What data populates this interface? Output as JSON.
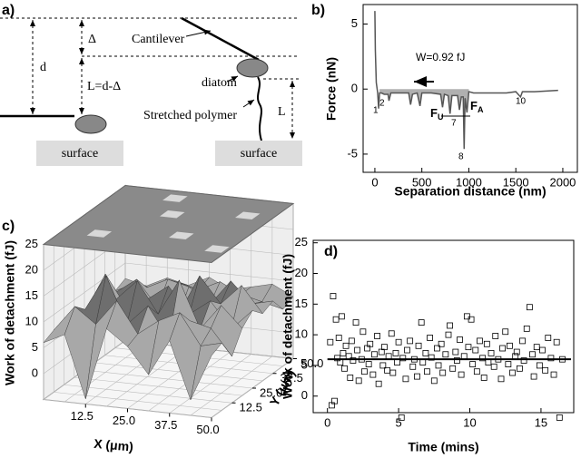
{
  "diagram": {
    "panel_label": "a)",
    "d": "d",
    "delta": "Δ",
    "l_formula": "L=d-Δ",
    "cantilever": "Cantilever",
    "diatom": "diatom",
    "stretched_polymer": "Stretched polymer",
    "l": "L",
    "surface_left": "surface",
    "surface_right": "surface"
  },
  "chart_data": [
    {
      "type": "line",
      "label": "b)",
      "x_label": "Separation distance (nm)",
      "y_label": "Force (nN)",
      "xlim": [
        -125,
        2155
      ],
      "ylim": [
        -6.4,
        6.5
      ],
      "xticks": [
        0,
        500,
        1000,
        1500,
        2000
      ],
      "yticks": [
        -5,
        0,
        5
      ],
      "color": "#555555",
      "fill_color": "#b0b0b0",
      "x": [
        0,
        5,
        15,
        30,
        40,
        50,
        70,
        100,
        140,
        150,
        170,
        200,
        300,
        360,
        380,
        400,
        450,
        480,
        500,
        600,
        700,
        720,
        740,
        780,
        800,
        820,
        880,
        900,
        920,
        940,
        950,
        960,
        980,
        1000,
        1050,
        1200,
        1400,
        1500,
        1550,
        1570,
        1700,
        1950
      ],
      "values": [
        6.0,
        3.0,
        0.5,
        -0.3,
        -1.5,
        -0.3,
        -0.3,
        -0.4,
        -0.4,
        -0.9,
        -0.3,
        -0.3,
        -0.3,
        -0.3,
        -1.2,
        -0.4,
        -0.3,
        -1.3,
        -0.3,
        -0.3,
        -0.4,
        -1.4,
        -0.4,
        -0.5,
        -1.9,
        -0.5,
        -0.5,
        -1.6,
        -0.6,
        -0.6,
        -4.6,
        -0.7,
        -1.8,
        -0.2,
        -0.3,
        -0.3,
        -0.3,
        -0.2,
        -0.6,
        -0.2,
        -0.2,
        -0.1
      ],
      "annotations": [
        "W=0.92 fJ",
        "1",
        "2",
        "7",
        "8",
        "10"
      ],
      "force_labels": [
        {
          "text": "F",
          "subscript": "U"
        },
        {
          "text": "F",
          "subscript": "A"
        }
      ]
    },
    {
      "type": "surface",
      "label": "c)",
      "x_label": "X (μm)",
      "y_label": "Y (μm)",
      "z_label": "Work of detachment (fJ)",
      "xlim": [
        0,
        50
      ],
      "ylim": [
        0,
        50
      ],
      "zlim": [
        -5,
        25
      ],
      "xticks": [
        12.5,
        {
          "value": 25,
          "label": "25.0"
        },
        37.5,
        {
          "value": 50,
          "label": "50.0"
        }
      ],
      "yticks": [
        12.5,
        {
          "value": 25,
          "label": "25.0"
        },
        37.5,
        {
          "value": 50,
          "label": "50.0"
        }
      ],
      "zticks": [
        0,
        5,
        10,
        15,
        20,
        25
      ],
      "x": [
        0,
        6.25,
        12.5,
        18.75,
        25,
        31.25,
        37.5,
        43.75,
        50
      ],
      "y": [
        0,
        6.25,
        12.5,
        18.75,
        25,
        31.25,
        37.5,
        43.75,
        50
      ],
      "z": [
        [
          6,
          8,
          -4,
          10,
          7,
          2,
          9,
          -2,
          7
        ],
        [
          7,
          12,
          9,
          14,
          8,
          11,
          13,
          7,
          8
        ],
        [
          5,
          10,
          17,
          8,
          12,
          6,
          10,
          9,
          4
        ],
        [
          8,
          6,
          11,
          15,
          9,
          16,
          7,
          12,
          8
        ],
        [
          6,
          14,
          8,
          10,
          13,
          8,
          11,
          6,
          10
        ],
        [
          7,
          9,
          12,
          7,
          6,
          14,
          9,
          13,
          8
        ],
        [
          8,
          7,
          9,
          11,
          10,
          7,
          12,
          8,
          9
        ],
        [
          6,
          8,
          7,
          9,
          8,
          10,
          8,
          7,
          6
        ],
        [
          7,
          6,
          8,
          7,
          9,
          7,
          8,
          9,
          7
        ]
      ]
    },
    {
      "type": "scatter",
      "label": "d)",
      "x_label": "Time (mins)",
      "y_label": "Work of detachment (fJ)",
      "xlim": [
        -1,
        17.3
      ],
      "ylim": [
        -2.7,
        25.4
      ],
      "xticks": [
        0,
        5,
        10,
        15
      ],
      "yticks": [
        0,
        5,
        10,
        15,
        20,
        25
      ],
      "reference_line": 6,
      "x": [
        0.2,
        0.3,
        0.4,
        0.5,
        0.6,
        0.7,
        0.8,
        0.9,
        1.0,
        1.1,
        1.2,
        1.3,
        1.5,
        1.6,
        1.7,
        1.8,
        2.0,
        2.1,
        2.2,
        2.4,
        2.5,
        2.6,
        2.8,
        2.9,
        3.0,
        3.2,
        3.3,
        3.5,
        3.6,
        3.8,
        3.9,
        4.0,
        4.2,
        4.3,
        4.5,
        4.6,
        4.8,
        4.9,
        5.0,
        5.2,
        5.3,
        5.5,
        5.6,
        5.8,
        6.0,
        6.1,
        6.3,
        6.4,
        6.6,
        6.7,
        6.9,
        7.0,
        7.2,
        7.3,
        7.5,
        7.7,
        7.8,
        8.0,
        8.1,
        8.3,
        8.5,
        8.6,
        8.8,
        9.0,
        9.1,
        9.3,
        9.4,
        9.6,
        9.8,
        9.9,
        10.1,
        10.2,
        10.4,
        10.5,
        10.7,
        10.9,
        11.0,
        11.2,
        11.3,
        11.5,
        11.7,
        11.8,
        12.0,
        12.2,
        12.3,
        12.5,
        12.7,
        12.8,
        13.0,
        13.2,
        13.3,
        13.5,
        13.7,
        13.8,
        14.0,
        14.2,
        14.4,
        14.5,
        14.7,
        14.9,
        15.1,
        15.3,
        15.5,
        15.7,
        15.9,
        16.1,
        16.3,
        16.5
      ],
      "values": [
        8.8,
        -1.5,
        16.3,
        -0.8,
        12.5,
        6.2,
        9.5,
        5.5,
        13.0,
        7.0,
        4.5,
        8.2,
        6.5,
        3.0,
        9.0,
        5.8,
        12.0,
        7.5,
        2.5,
        6.0,
        10.5,
        4.0,
        7.8,
        5.2,
        8.5,
        3.5,
        6.8,
        9.8,
        2.0,
        7.2,
        5.0,
        8.0,
        4.2,
        6.5,
        10.2,
        3.8,
        7.0,
        5.5,
        8.8,
        -3.5,
        6.2,
        2.8,
        7.5,
        9.0,
        4.8,
        6.0,
        3.2,
        8.2,
        12.0,
        5.5,
        7.0,
        4.0,
        9.5,
        6.3,
        2.5,
        7.8,
        5.0,
        8.5,
        3.8,
        6.8,
        10.0,
        11.5,
        4.5,
        7.2,
        5.8,
        9.2,
        3.5,
        6.5,
        13.0,
        8.0,
        12.5,
        5.2,
        7.5,
        4.0,
        9.0,
        6.2,
        3.0,
        8.5,
        5.5,
        7.0,
        4.8,
        9.8,
        6.0,
        2.8,
        7.8,
        10.5,
        5.2,
        8.2,
        3.8,
        6.5,
        7.2,
        4.5,
        9.0,
        5.8,
        11.0,
        14.5,
        6.8,
        3.2,
        8.0,
        5.0,
        7.5,
        4.2,
        9.5,
        6.2,
        3.5,
        8.8,
        -3.5,
        6.0
      ]
    }
  ]
}
